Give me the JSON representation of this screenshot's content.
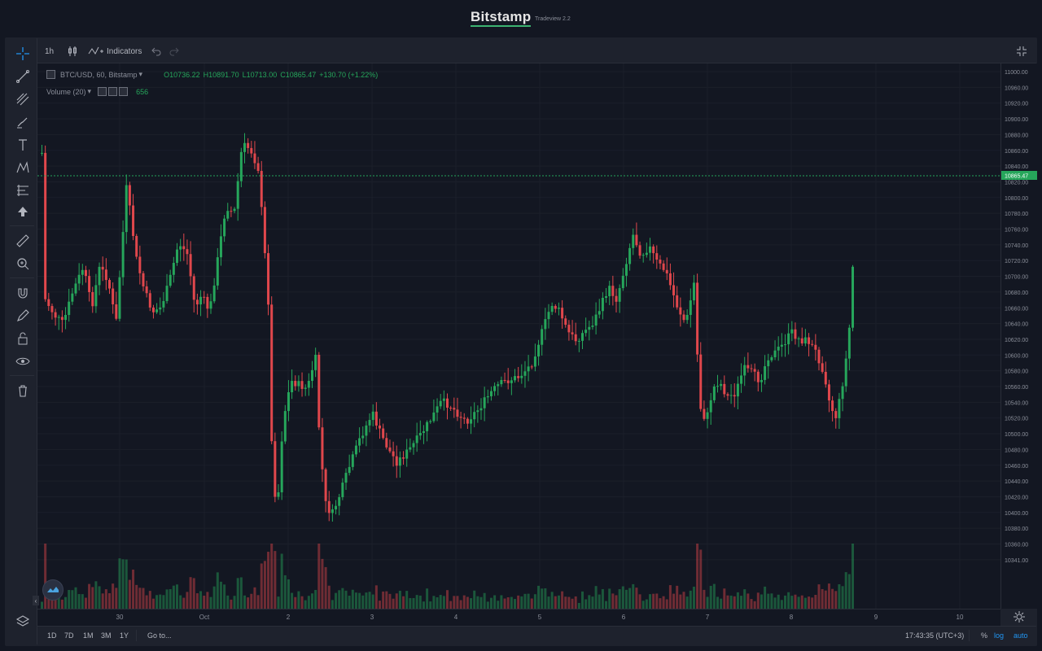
{
  "brand": {
    "name": "Bitstamp",
    "version": "Tradeview 2.2"
  },
  "top_toolbar": {
    "interval": "1h",
    "indicators_label": "Indicators"
  },
  "legend": {
    "symbol": "BTC/USD, 60, Bitstamp",
    "open": "O10736.22",
    "high": "H10891.70",
    "low": "L10713.00",
    "close": "C10865.47",
    "change": "+130.70 (+1.22%)",
    "volume_label": "Volume (20)",
    "volume_value": "656"
  },
  "price_axis": {
    "labels": [
      "11000.00",
      "10960.00",
      "10920.00",
      "10900.00",
      "10880.00",
      "10860.00",
      "10840.00",
      "10820.00",
      "10800.00",
      "10780.00",
      "10760.00",
      "10740.00",
      "10720.00",
      "10700.00",
      "10680.00",
      "10660.00",
      "10640.00",
      "10620.00",
      "10600.00",
      "10580.00",
      "10560.00",
      "10540.00",
      "10520.00",
      "10500.00",
      "10480.00",
      "10460.00",
      "10440.00",
      "10420.00",
      "10400.00",
      "10380.00",
      "10360.00",
      "10341.00"
    ],
    "current_price": "10865.47"
  },
  "time_axis": {
    "labels": [
      "30",
      "Oct",
      "2",
      "3",
      "4",
      "5",
      "6",
      "7",
      "8",
      "9",
      "10"
    ]
  },
  "bottom_bar": {
    "ranges": [
      "1D",
      "7D",
      "1M",
      "3M",
      "1Y"
    ],
    "goto": "Go to...",
    "clock": "17:43:35 (UTC+3)",
    "percent": "%",
    "log": "log",
    "auto": "auto"
  },
  "colors": {
    "up": "#26a65b",
    "down": "#e0474c",
    "bg": "#131722",
    "panel": "#1e222d",
    "grid": "#1f2430",
    "accent": "#2196f3"
  },
  "icons": [
    "crosshair-icon",
    "trendline-icon",
    "fib-icon",
    "brush-icon",
    "text-icon",
    "pattern-icon",
    "projection-icon",
    "arrow-up-icon",
    "ruler-icon",
    "zoom-icon",
    "magnet-icon",
    "stay-drawing-icon",
    "lock-icon",
    "eye-icon",
    "trash-icon",
    "layers-icon"
  ]
}
